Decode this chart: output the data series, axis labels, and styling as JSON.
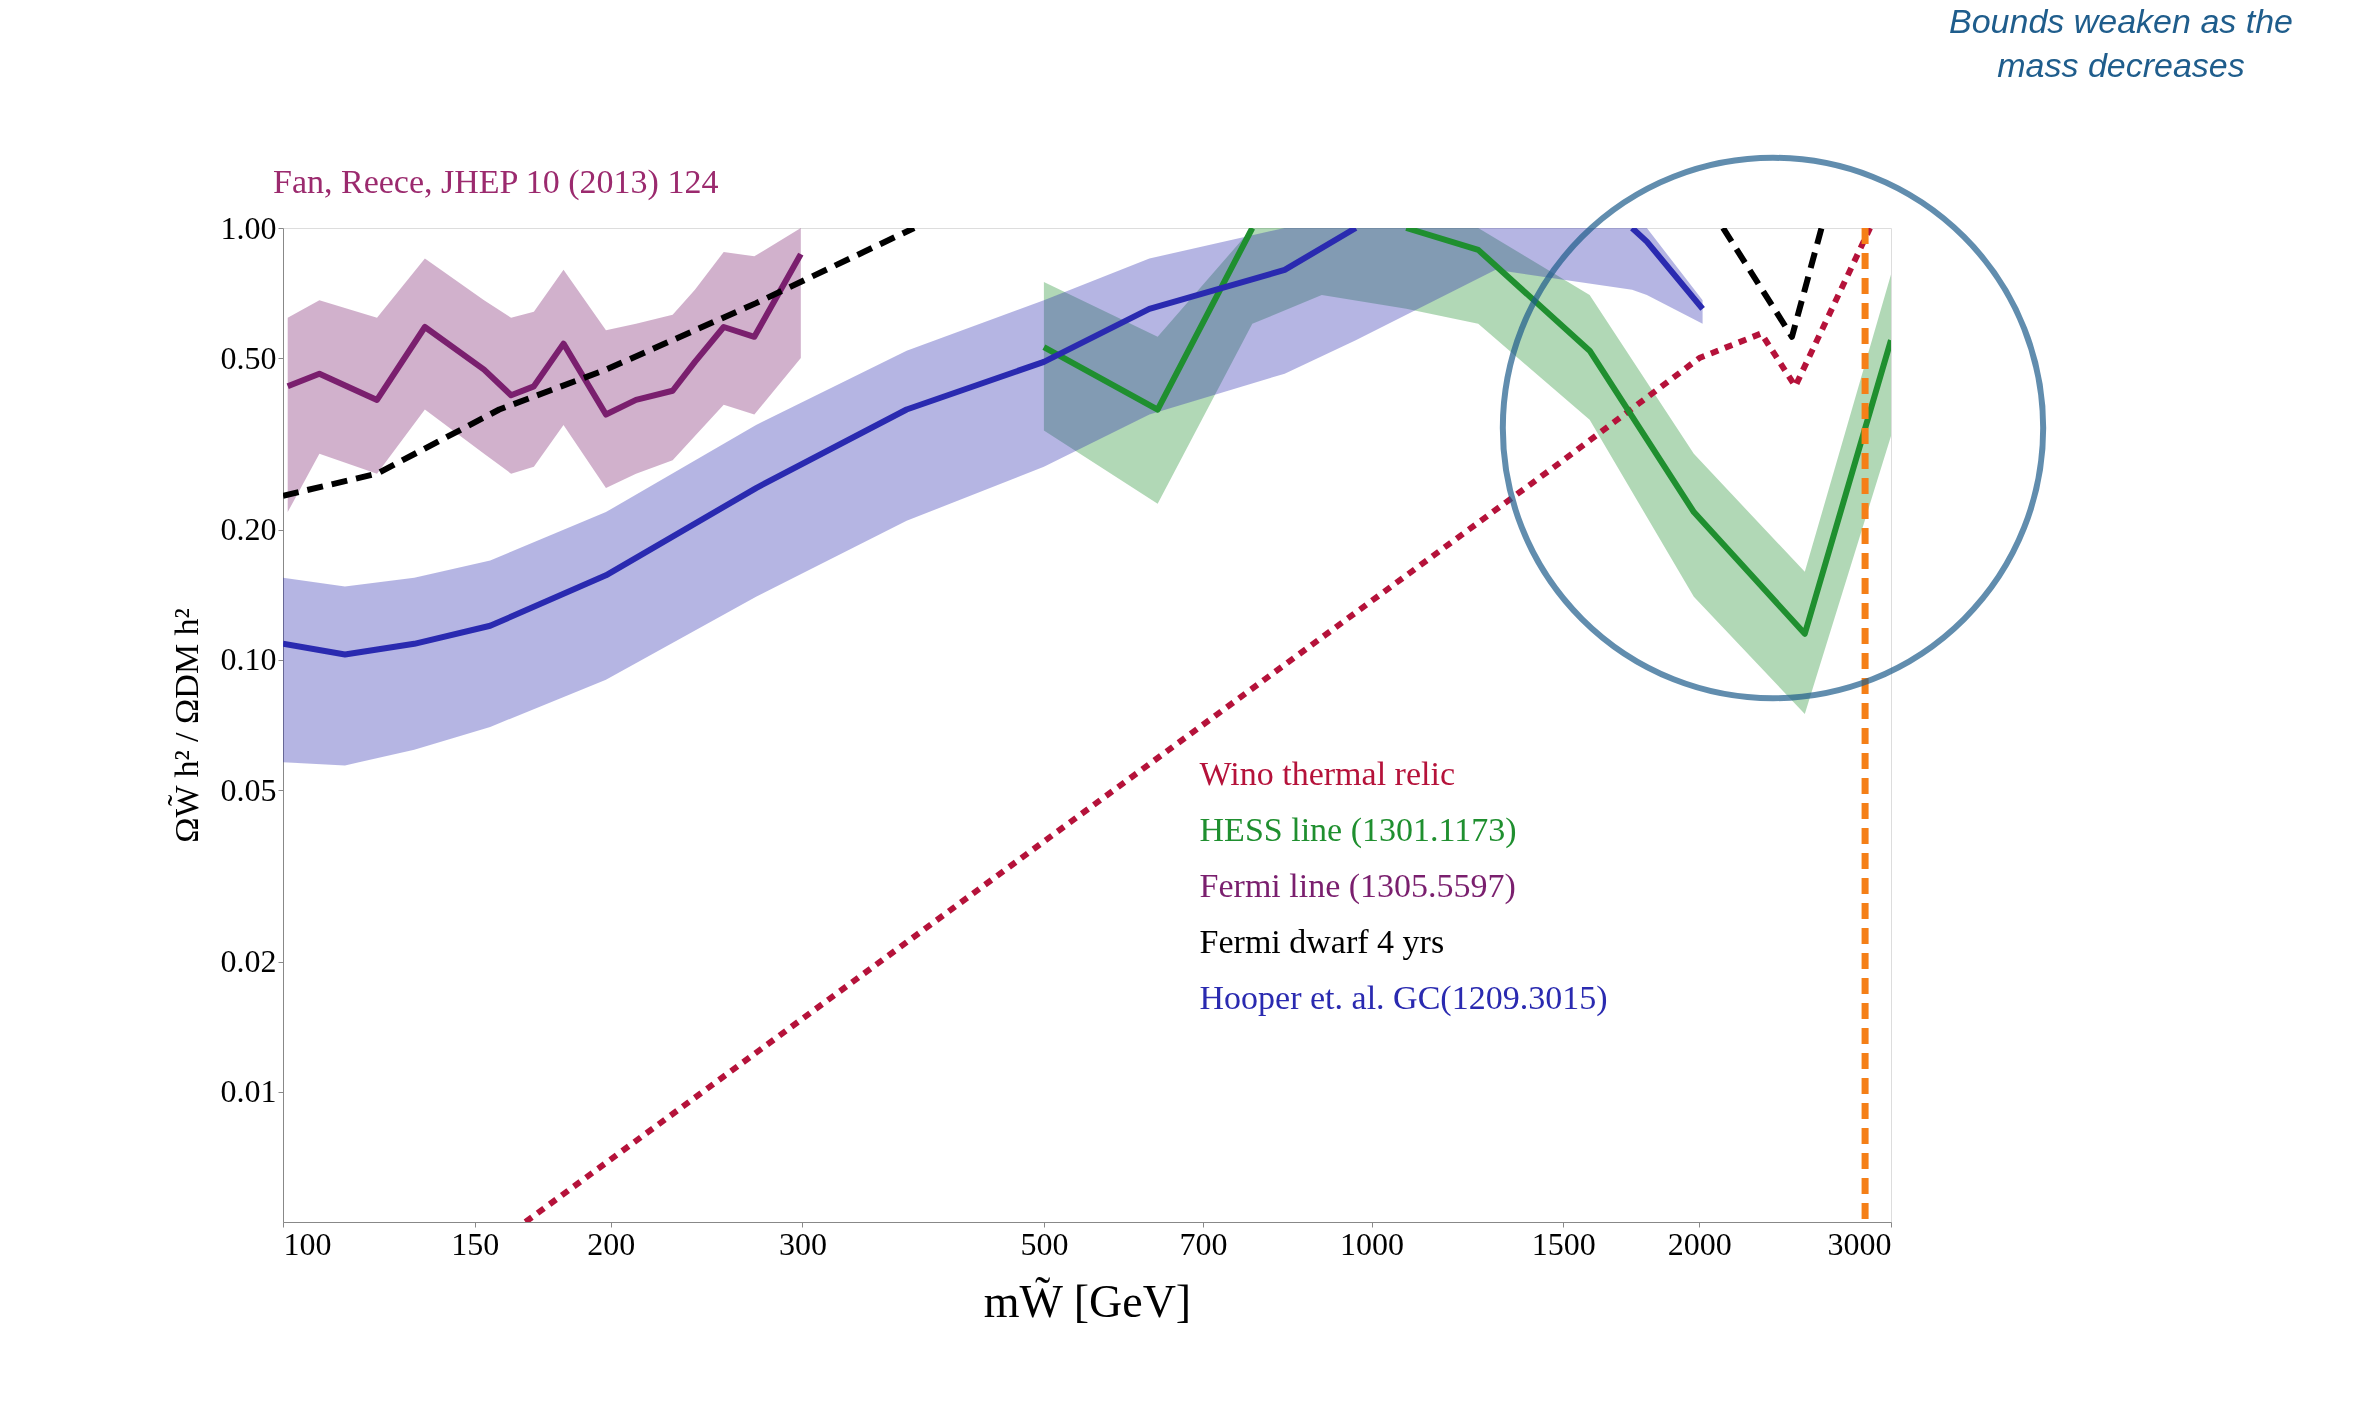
{
  "chart_data": {
    "type": "line",
    "xlabel": "mW̃ [GeV]",
    "ylabel": "ΩW̃ h² / ΩDM h²",
    "log": "xy",
    "xlim": [
      100,
      3000
    ],
    "ylim": [
      0.005,
      1
    ],
    "xticks": [
      100,
      150,
      200,
      300,
      500,
      700,
      1000,
      1500,
      2000,
      3000
    ],
    "yticks": [
      0.01,
      0.02,
      0.05,
      {
        "value": 0.1,
        "label": "0.10"
      },
      {
        "value": 0.2,
        "label": "0.20"
      },
      {
        "value": 0.5,
        "label": "0.50"
      },
      {
        "value": 1,
        "label": "1.00"
      }
    ],
    "grid": false,
    "legend": "bottom right",
    "marker": "none",
    "annotations": [
      "Fan, Reece, JHEP 10 (2013) 124",
      "Bounds weaken as the mass decreases"
    ],
    "ref_lines": [
      {
        "axis": "x",
        "value": 2840,
        "color": "#f57f17",
        "line_style": "dashed"
      }
    ],
    "series": [
      {
        "name": "Wino thermal relic",
        "color": "#b5123a",
        "line_style": "dotted",
        "x": [
          167,
          500,
          1000,
          1500,
          2000,
          2280,
          2450,
          2870
        ],
        "values": [
          0.005,
          0.038,
          0.137,
          0.29,
          0.5,
          0.57,
          0.43,
          1.0
        ]
      },
      {
        "name": "HESS line (1301.1173)",
        "color": "#1f8f2f",
        "line_style": "solid",
        "x": [
          500,
          636,
          777,
          900,
          1076,
          1253,
          1586,
          1977,
          2500,
          3000
        ],
        "values": [
          0.53,
          0.38,
          1.0,
          null,
          1.0,
          0.89,
          0.52,
          0.22,
          0.115,
          0.55
        ],
        "lower": [
          0.34,
          0.23,
          0.6,
          0.7,
          0.65,
          0.6,
          0.36,
          0.14,
          0.075,
          0.33
        ],
        "upper": [
          0.75,
          0.56,
          1.0,
          1.0,
          1.0,
          1.0,
          0.7,
          0.3,
          0.16,
          0.78
        ]
      },
      {
        "name": "Fermi line (1305.5597)",
        "color": "#7a1f6e",
        "line_style": "solid",
        "x": [
          101,
          108,
          122,
          135,
          153,
          162,
          170,
          181,
          198,
          211,
          228,
          239,
          254,
          271,
          299
        ],
        "values": [
          0.43,
          0.46,
          0.4,
          0.59,
          0.47,
          0.41,
          0.43,
          0.54,
          0.37,
          0.4,
          0.42,
          0.49,
          0.59,
          0.56,
          0.87
        ],
        "lower": [
          0.22,
          0.3,
          0.27,
          0.38,
          0.3,
          0.27,
          0.28,
          0.35,
          0.25,
          0.27,
          0.29,
          0.33,
          0.39,
          0.37,
          0.5
        ],
        "upper": [
          0.62,
          0.68,
          0.62,
          0.85,
          0.68,
          0.62,
          0.64,
          0.8,
          0.58,
          0.6,
          0.63,
          0.72,
          0.88,
          0.86,
          1.0
        ]
      },
      {
        "name": "Fermi dwarf 4 yrs",
        "color": "#000000",
        "line_style": "dashed",
        "x": [
          100,
          122,
          158,
          198,
          272,
          380,
          1000,
          2103,
          2433,
          2590
        ],
        "values": [
          0.24,
          0.27,
          0.38,
          0.47,
          0.67,
          1.0,
          null,
          1.0,
          0.56,
          1.0
        ]
      },
      {
        "name": "Hooper et. al. GC(1209.3015)",
        "color": "#2a2ab0",
        "line_style": "solid",
        "x": [
          100,
          114,
          132,
          155,
          198,
          272,
          374,
          500,
          625,
          832,
          967,
          1300,
          1735,
          1790,
          2014
        ],
        "values": [
          0.109,
          0.103,
          0.109,
          0.12,
          0.157,
          0.25,
          0.38,
          0.49,
          0.65,
          0.8,
          1.0,
          null,
          1.0,
          0.93,
          0.65
        ],
        "lower": [
          0.058,
          0.057,
          0.062,
          0.07,
          0.09,
          0.14,
          0.21,
          0.28,
          0.37,
          0.46,
          0.55,
          0.8,
          0.72,
          0.7,
          0.6
        ],
        "upper": [
          0.155,
          0.148,
          0.155,
          0.17,
          0.22,
          0.35,
          0.52,
          0.68,
          0.85,
          1.0,
          1.0,
          1.0,
          1.0,
          1.0,
          0.68
        ]
      }
    ]
  }
}
